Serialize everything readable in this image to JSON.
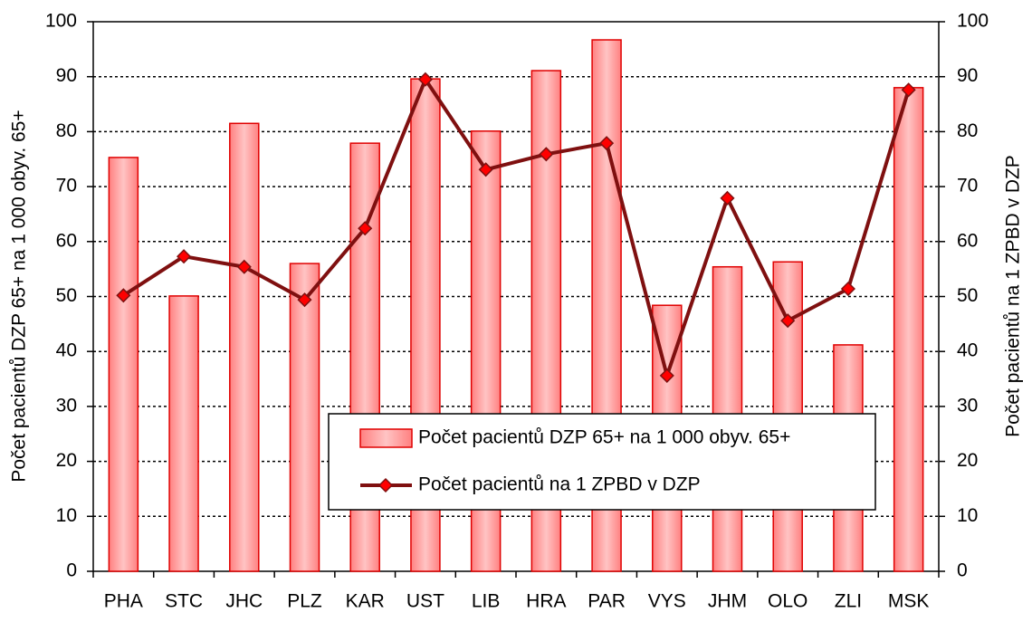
{
  "chart_data": {
    "type": "bar",
    "categories": [
      "PHA",
      "STC",
      "JHC",
      "PLZ",
      "KAR",
      "UST",
      "LIB",
      "HRA",
      "PAR",
      "VYS",
      "JHM",
      "OLO",
      "ZLI",
      "MSK"
    ],
    "series": [
      {
        "name": "Počet pacientů DZP 65+ na 1 000 obyv. 65+",
        "type": "bar",
        "color": "#ff9f9f",
        "values": [
          75.3,
          50.1,
          81.5,
          56,
          77.9,
          89.6,
          80.1,
          91.1,
          96.7,
          48.4,
          55.4,
          56.3,
          41.2,
          88
        ]
      },
      {
        "name": "Počet pacientů na 1 ZPBD v DZP",
        "type": "line",
        "axis": "y2",
        "color": "#7f1010",
        "values": [
          50.2,
          57.3,
          55.4,
          49.4,
          62.4,
          89.5,
          73.1,
          75.9,
          77.9,
          35.6,
          67.9,
          45.6,
          51.4,
          87.6
        ]
      }
    ],
    "ylabel": "Počet pacientů DZP 65+ na 1 000 obyv. 65+",
    "y2label": "Počet pacientů na 1 ZPBD v DZP",
    "ylim": [
      0,
      100
    ],
    "yticks": [
      0,
      10,
      20,
      30,
      40,
      50,
      60,
      70,
      80,
      90,
      100
    ],
    "y2lim": [
      0,
      100
    ],
    "y2ticks": [
      0,
      10,
      20,
      30,
      40,
      50,
      60,
      70,
      80,
      90,
      100
    ],
    "grid": true
  }
}
